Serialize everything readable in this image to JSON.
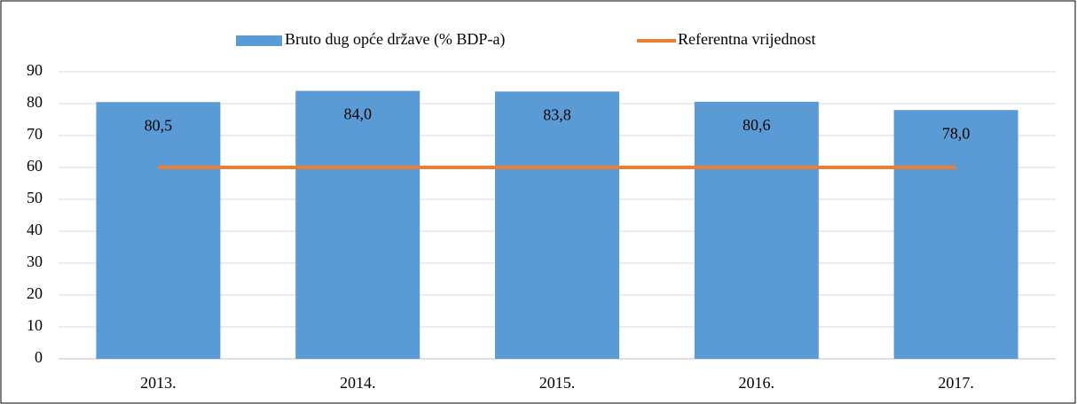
{
  "chart_data": {
    "type": "bar",
    "categories": [
      "2013.",
      "2014.",
      "2015.",
      "2016.",
      "2017."
    ],
    "series": [
      {
        "name": "Bruto dug opće države (% BDP-a)",
        "color": "#5b9bd5",
        "values": [
          80.5,
          84.0,
          83.8,
          80.6,
          78.0
        ],
        "value_labels": [
          "80,5",
          "84,0",
          "83,8",
          "80,6",
          "78,0"
        ]
      },
      {
        "name": "Referentna vrijednost",
        "color": "#ed7d31",
        "type": "line",
        "values": [
          60,
          60,
          60,
          60,
          60
        ]
      }
    ],
    "ylim": [
      0,
      90
    ],
    "yticks": [
      0,
      10,
      20,
      30,
      40,
      50,
      60,
      70,
      80,
      90
    ],
    "grid": true,
    "legend": "top"
  }
}
